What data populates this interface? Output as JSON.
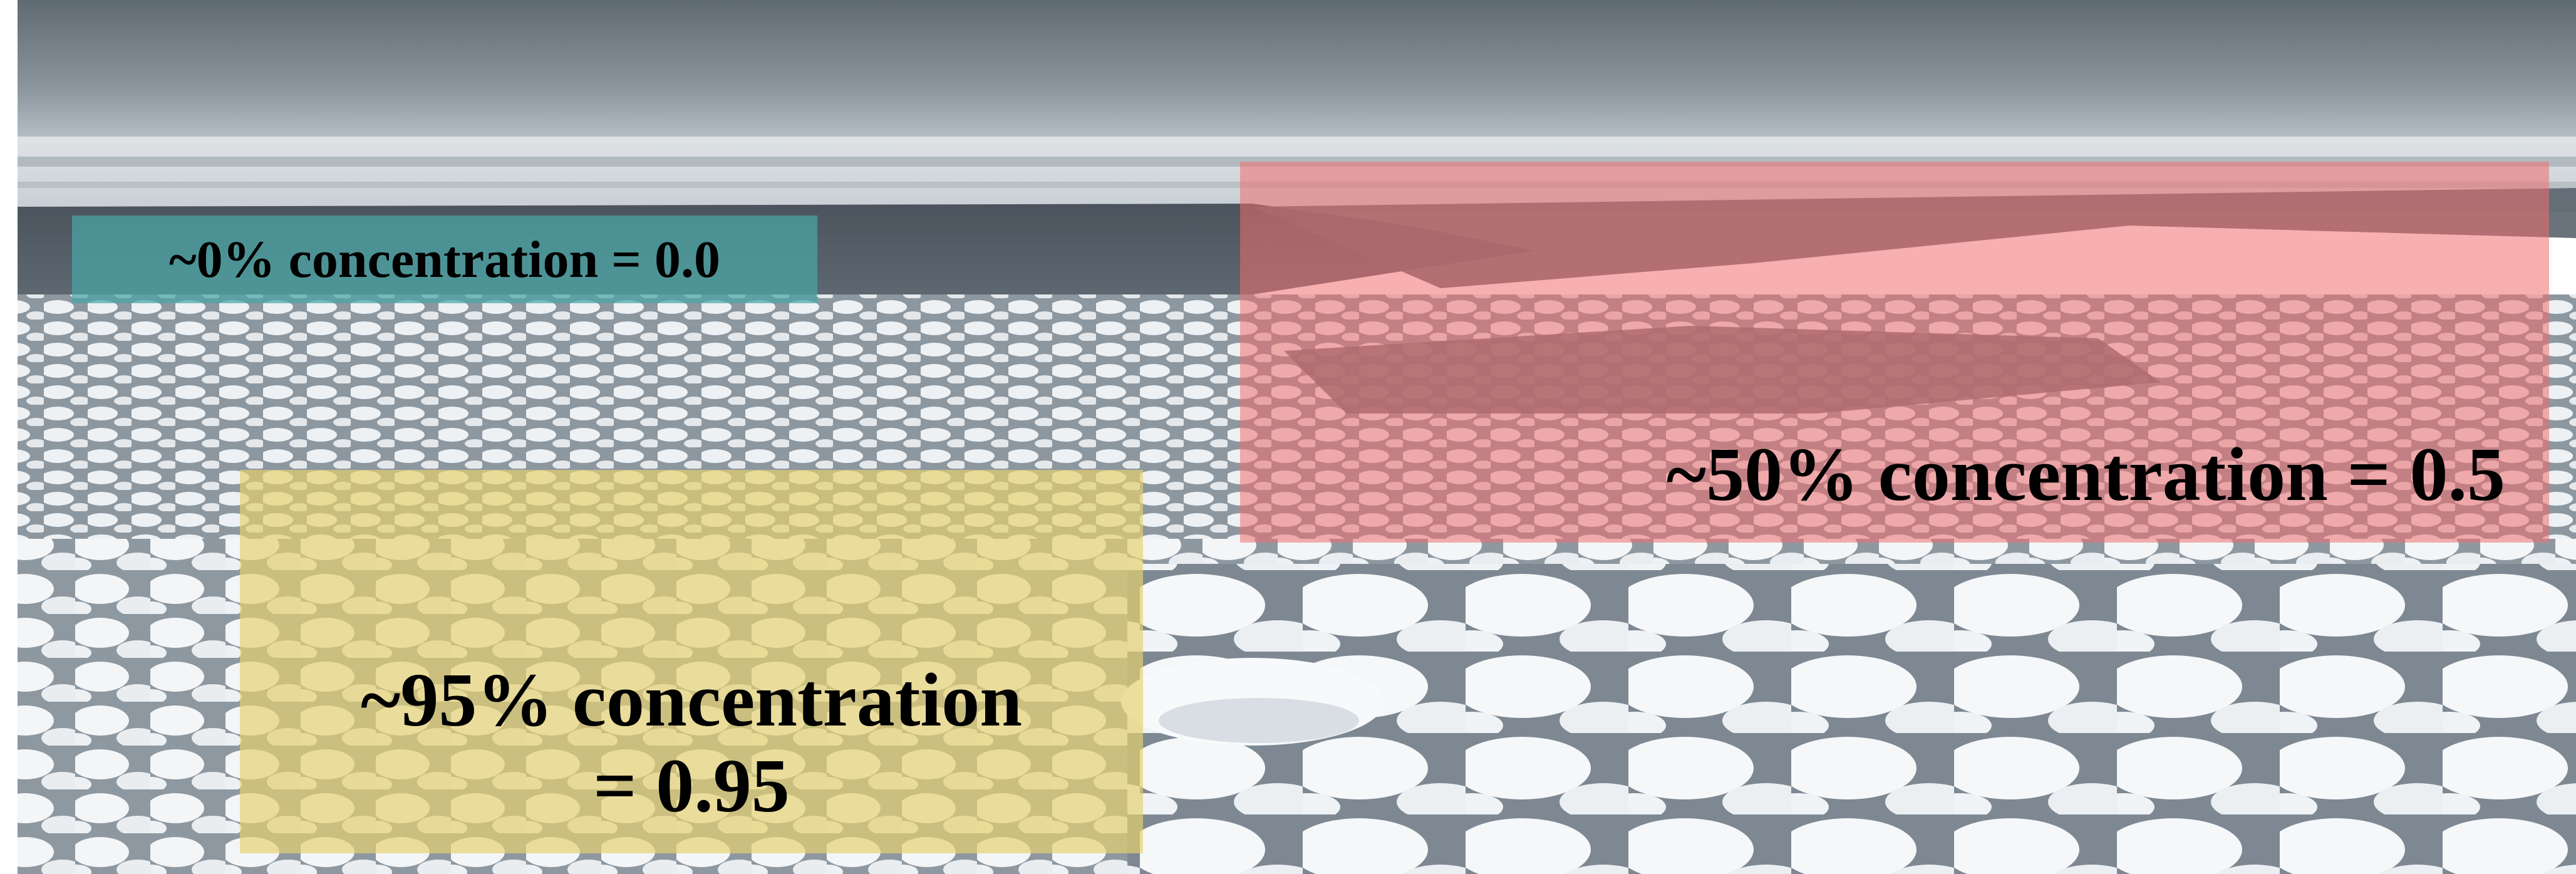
{
  "image": {
    "subject": "sea ice field with pancake ice floes under an overcast sky",
    "regions": [
      {
        "id": "open-water",
        "label": "~0% concentration = 0.0",
        "color": "#4aa6a6"
      },
      {
        "id": "partial-cover",
        "label": "~50% concentration = 0.5",
        "color": "#f08080"
      },
      {
        "id": "dense-pack",
        "label_line1": "~95% concentration",
        "label_line2": "= 0.95",
        "color": "#e6d47a"
      }
    ]
  },
  "colors": {
    "sky_top": "#6f7880",
    "sky_bottom": "#b7bfc6",
    "water": "#4d5660",
    "ice": "#f2f4f6",
    "ice_shadow": "#c9d0d6"
  }
}
